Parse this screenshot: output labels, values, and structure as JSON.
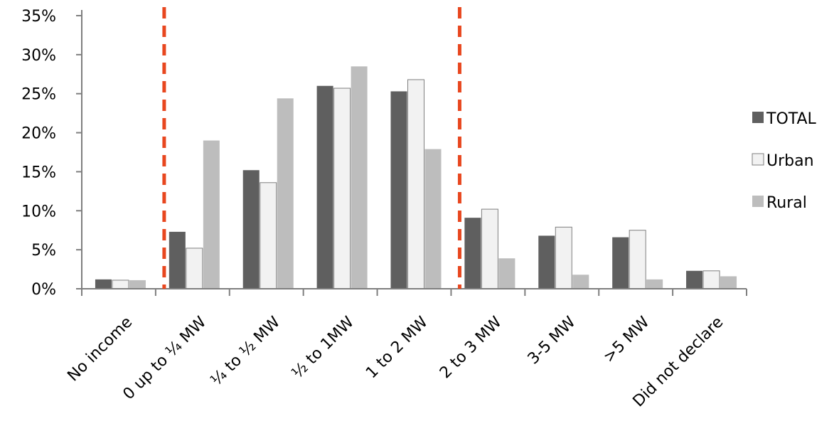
{
  "chart_data": {
    "type": "bar",
    "categories": [
      "No income",
      "0 up to ¼ MW",
      "¼ to ½ MW",
      "½ to 1MW",
      "1 to 2 MW",
      "2 to 3 MW",
      "3-5 MW",
      ">5 MW",
      "Did not declare"
    ],
    "series": [
      {
        "name": "TOTAL",
        "values": [
          1.2,
          7.3,
          15.2,
          26.0,
          25.3,
          9.1,
          6.8,
          6.6,
          2.3
        ]
      },
      {
        "name": "Urban",
        "values": [
          1.1,
          5.2,
          13.6,
          25.7,
          26.8,
          10.2,
          7.9,
          7.5,
          2.3
        ]
      },
      {
        "name": "Rural",
        "values": [
          1.1,
          19.0,
          24.4,
          28.5,
          17.9,
          3.9,
          1.8,
          1.2,
          1.6
        ]
      }
    ],
    "ylim": [
      0,
      35
    ],
    "y_ticks": [
      "0%",
      "5%",
      "10%",
      "15%",
      "20%",
      "25%",
      "30%",
      "35%"
    ],
    "y_tick_values": [
      0,
      5,
      10,
      15,
      20,
      25,
      30,
      35
    ],
    "legend_position": "right",
    "dashed_markers": {
      "color": "#E8471F",
      "after_category_boundaries": [
        1,
        5
      ]
    },
    "colors": {
      "TOTAL": "#5F5F5F",
      "Urban": "#F2F2F2",
      "Rural": "#BDBDBD",
      "axis": "#7F7F7F",
      "bar_edge": "#7F7F7F"
    },
    "grid": false
  }
}
